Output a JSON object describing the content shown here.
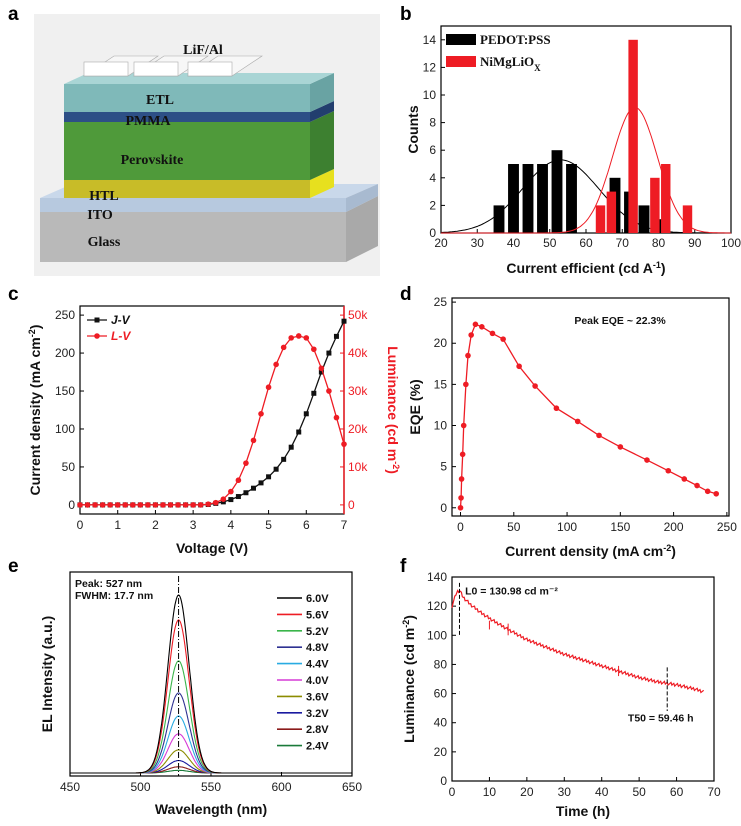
{
  "panels": {
    "a": {
      "label": "a",
      "layers": [
        "LiF/Al",
        "ETL",
        "PMMA",
        "Perovskite",
        "HTL",
        "ITO",
        "Glass"
      ]
    },
    "b": {
      "label": "b"
    },
    "c": {
      "label": "c"
    },
    "d": {
      "label": "d"
    },
    "e": {
      "label": "e"
    },
    "f": {
      "label": "f"
    }
  },
  "chart_data": [
    {
      "panel": "b",
      "type": "bar",
      "xlabel": "Current efficient (cd A⁻¹)",
      "ylabel": "Counts",
      "xlim": [
        20,
        100
      ],
      "ylim": [
        0,
        15
      ],
      "xticks": [
        "20",
        "30",
        "40",
        "50",
        "60",
        "70",
        "80",
        "90",
        "100"
      ],
      "yticks": [
        "0",
        "2",
        "4",
        "6",
        "8",
        "10",
        "12",
        "14"
      ],
      "legend_position": "top-left",
      "series": [
        {
          "name": "PEDOT:PSS",
          "color": "#000000",
          "bins": [
            36,
            40,
            44,
            48,
            52,
            56,
            60,
            64,
            68,
            72,
            76,
            80,
            84,
            88
          ],
          "values": [
            2,
            5,
            5,
            5,
            6,
            5,
            0,
            0,
            4,
            3,
            2,
            1,
            0,
            0
          ],
          "fit": {
            "mu": 53,
            "sigma": 10.5,
            "peak": 5.3
          }
        },
        {
          "name": "NiMgLiOX",
          "color": "#ee1c24",
          "bins": [
            64,
            67,
            70,
            73,
            76,
            79,
            82,
            85,
            88
          ],
          "values": [
            2,
            3,
            0,
            14,
            0,
            4,
            5,
            0,
            2
          ],
          "fit": {
            "mu": 73.5,
            "sigma": 6.2,
            "peak": 9.1
          }
        }
      ]
    },
    {
      "panel": "c",
      "type": "line",
      "xlabel": "Voltage (V)",
      "ylabel": "Current density (mA cm⁻²)",
      "ylabel2": "Luminance (cd m⁻²)",
      "xlim": [
        0,
        7
      ],
      "ylim": [
        -12,
        262
      ],
      "ylim2": [
        -2400,
        52400
      ],
      "xticks": [
        "0",
        "1",
        "2",
        "3",
        "4",
        "5",
        "6",
        "7"
      ],
      "yticks": [
        "0",
        "50",
        "100",
        "150",
        "200",
        "250"
      ],
      "yticks2": [
        "0",
        "10k",
        "20k",
        "30k",
        "40k",
        "50k"
      ],
      "series": [
        {
          "name": "J-V",
          "color": "#111111",
          "axis": "left",
          "x": [
            0,
            0.2,
            0.4,
            0.6,
            0.8,
            1.0,
            1.2,
            1.4,
            1.6,
            1.8,
            2.0,
            2.2,
            2.4,
            2.6,
            2.8,
            3.0,
            3.2,
            3.4,
            3.6,
            3.8,
            4.0,
            4.2,
            4.4,
            4.6,
            4.8,
            5.0,
            5.2,
            5.4,
            5.6,
            5.8,
            6.0,
            6.2,
            6.4,
            6.6,
            6.8,
            7.0
          ],
          "y": [
            0,
            0,
            0,
            0,
            0,
            0,
            0,
            0,
            0,
            0,
            0,
            0,
            0,
            0,
            0,
            0,
            0,
            0.5,
            2,
            4,
            7,
            11,
            16,
            22,
            29,
            37,
            47,
            60,
            76,
            96,
            120,
            147,
            175,
            200,
            222,
            242
          ]
        },
        {
          "name": "L-V",
          "color": "#ee1c24",
          "axis": "right",
          "x": [
            0,
            0.2,
            0.4,
            0.6,
            0.8,
            1.0,
            1.2,
            1.4,
            1.6,
            1.8,
            2.0,
            2.2,
            2.4,
            2.6,
            2.8,
            3.0,
            3.2,
            3.4,
            3.6,
            3.8,
            4.0,
            4.2,
            4.4,
            4.6,
            4.8,
            5.0,
            5.2,
            5.4,
            5.6,
            5.8,
            6.0,
            6.2,
            6.4,
            6.6,
            6.8,
            7.0
          ],
          "y": [
            0,
            0,
            0,
            0,
            0,
            0,
            0,
            0,
            0,
            0,
            0,
            0,
            0,
            0,
            0,
            0,
            0,
            200,
            600,
            1500,
            3500,
            6500,
            11000,
            17000,
            24000,
            31000,
            37000,
            41500,
            44000,
            44500,
            44000,
            41000,
            36000,
            30000,
            23000,
            16000
          ]
        }
      ]
    },
    {
      "panel": "d",
      "type": "line",
      "xlabel": "Current density (mA cm⁻²)",
      "ylabel": "EQE (%)",
      "xlim": [
        -8,
        252
      ],
      "ylim": [
        -1,
        25.5
      ],
      "xticks": [
        "0",
        "50",
        "100",
        "150",
        "200",
        "250"
      ],
      "yticks": [
        "0",
        "5",
        "10",
        "15",
        "20",
        "25"
      ],
      "annotation": "Peak EQE ~ 22.3%",
      "series": [
        {
          "name": "EQE",
          "color": "#ee1c24",
          "x": [
            0,
            0.5,
            1,
            2,
            3,
            5,
            7,
            10,
            14,
            20,
            30,
            40,
            55,
            70,
            90,
            110,
            130,
            150,
            175,
            195,
            210,
            222,
            232,
            240
          ],
          "y": [
            0,
            1.2,
            3.5,
            6.5,
            10,
            15,
            18.5,
            21,
            22.3,
            22,
            21.2,
            20.5,
            17.2,
            14.8,
            12.1,
            10.5,
            8.8,
            7.4,
            5.8,
            4.5,
            3.5,
            2.7,
            2.0,
            1.7
          ]
        }
      ]
    },
    {
      "panel": "e",
      "type": "line",
      "xlabel": "Wavelength (nm)",
      "ylabel": "EL Intensity (a.u.)",
      "xlim": [
        450,
        650
      ],
      "xticks": [
        "450",
        "500",
        "550",
        "600",
        "650"
      ],
      "annotations": [
        "Peak: 527 nm",
        "FWHM: 17.7 nm"
      ],
      "peak_nm": 527,
      "fwhm_nm": 17.7,
      "series": [
        {
          "name": "6.0V",
          "color": "#000000",
          "relative_peak": 1.0
        },
        {
          "name": "5.6V",
          "color": "#ee1c24",
          "relative_peak": 0.86
        },
        {
          "name": "5.2V",
          "color": "#3ab54a",
          "relative_peak": 0.63
        },
        {
          "name": "4.8V",
          "color": "#2e3192",
          "relative_peak": 0.45
        },
        {
          "name": "4.4V",
          "color": "#29abe2",
          "relative_peak": 0.32
        },
        {
          "name": "4.0V",
          "color": "#d63bd6",
          "relative_peak": 0.22
        },
        {
          "name": "3.6V",
          "color": "#8c8c00",
          "relative_peak": 0.13
        },
        {
          "name": "3.2V",
          "color": "#1a1aa0",
          "relative_peak": 0.07
        },
        {
          "name": "2.8V",
          "color": "#8b1a1a",
          "relative_peak": 0.035
        },
        {
          "name": "2.4V",
          "color": "#1a7a3a",
          "relative_peak": 0.015
        }
      ]
    },
    {
      "panel": "f",
      "type": "line",
      "xlabel": "Time (h)",
      "ylabel": "Luminance (cd m⁻²)",
      "xlim": [
        0,
        70
      ],
      "ylim": [
        0,
        140
      ],
      "xticks": [
        "0",
        "10",
        "20",
        "30",
        "40",
        "50",
        "60",
        "70"
      ],
      "yticks": [
        "0",
        "20",
        "40",
        "60",
        "80",
        "100",
        "120",
        "140"
      ],
      "annotations": [
        "L0 = 130.98 cd m⁻²",
        "T50 = 59.46 h"
      ],
      "series": [
        {
          "name": "Luminance",
          "color": "#ee1c24",
          "x": [
            0,
            0.5,
            1,
            1.5,
            2,
            3,
            5,
            8,
            11,
            15,
            20,
            25,
            30,
            35,
            40,
            45,
            50,
            55,
            60,
            65,
            67.5
          ],
          "y": [
            120,
            124,
            128,
            130,
            131,
            126,
            121,
            115,
            110,
            104,
            97,
            92,
            87,
            83,
            79,
            75,
            71,
            68,
            66,
            63,
            61
          ]
        }
      ]
    }
  ]
}
